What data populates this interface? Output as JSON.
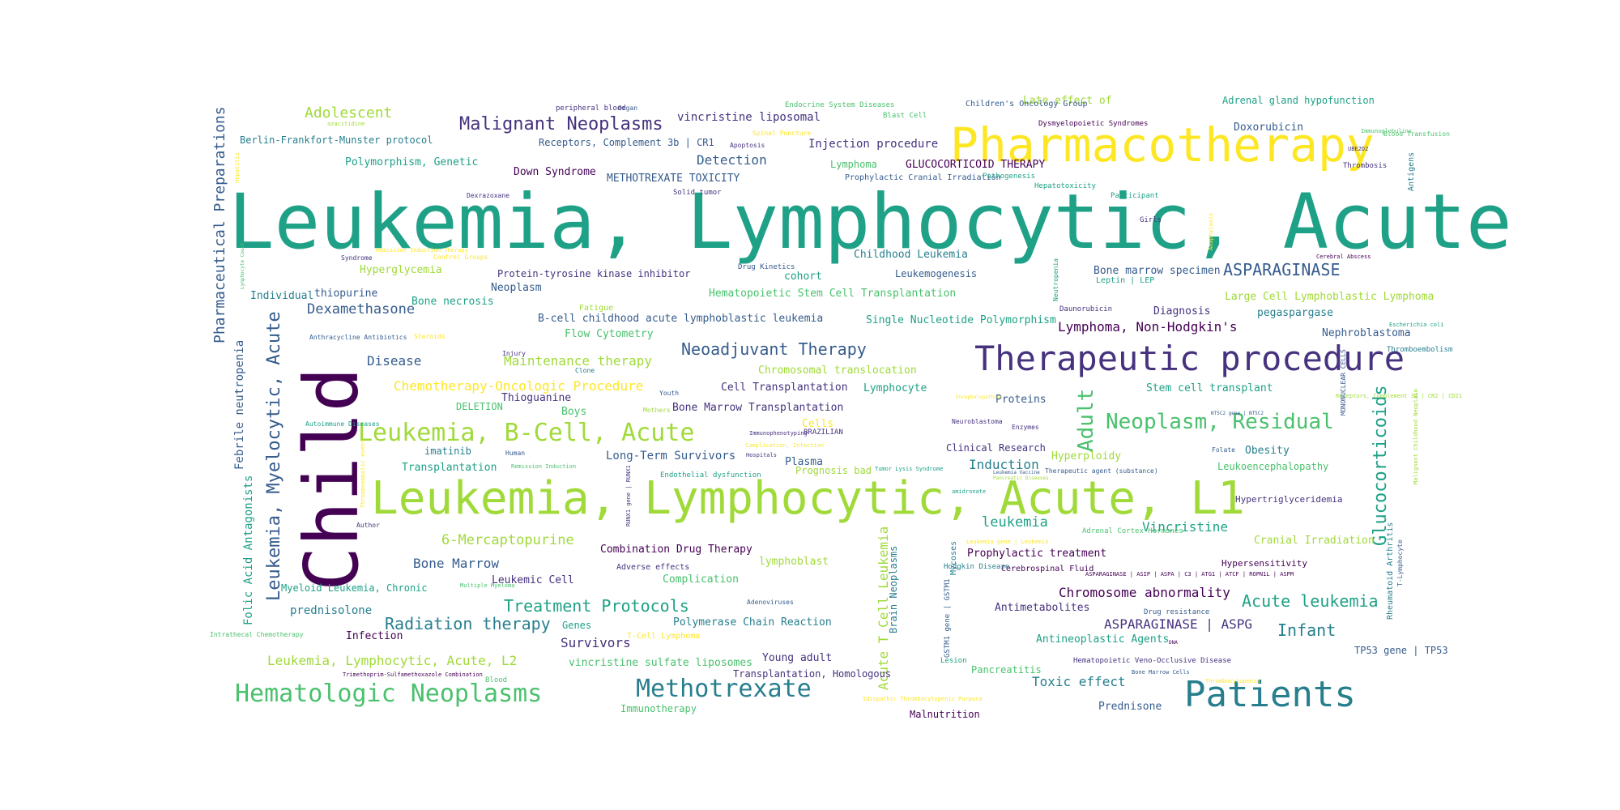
{
  "palette": {
    "c1": "#440154",
    "c2": "#46327e",
    "c3": "#365c8d",
    "c4": "#277f8e",
    "c5": "#1fa187",
    "c6": "#4ac16d",
    "c7": "#a0da39",
    "c8": "#fde725"
  },
  "words": [
    {
      "text": "Leukemia, Lymphocytic, Acute",
      "color": "c5"
    },
    {
      "text": "Child",
      "color": "c1"
    },
    {
      "text": "Leukemia, Lymphocytic, Acute, L1",
      "color": "c7"
    },
    {
      "text": "Pharmacotherapy",
      "color": "c8"
    },
    {
      "text": "Therapeutic procedure",
      "color": "c2"
    },
    {
      "text": "Patients",
      "color": "c4"
    },
    {
      "text": "Hematologic Neoplasms",
      "color": "c6"
    },
    {
      "text": "Methotrexate",
      "color": "c4"
    },
    {
      "text": "Leukemia, B-Cell, Acute",
      "color": "c7"
    },
    {
      "text": "Neoplasm, Residual",
      "color": "c6"
    },
    {
      "text": "Leukemia, Myelocytic, Acute",
      "color": "c3"
    },
    {
      "text": "Glucocorticoids",
      "color": "c5"
    },
    {
      "text": "Pharmaceutical Preparations",
      "color": "c3"
    },
    {
      "text": "Adult",
      "color": "c6"
    },
    {
      "text": "Malignant Neoplasms",
      "color": "c2"
    },
    {
      "text": "Neoadjuvant Therapy",
      "color": "c3"
    },
    {
      "text": "Treatment Protocols",
      "color": "c5"
    },
    {
      "text": "Radiation therapy",
      "color": "c4"
    },
    {
      "text": "Infant",
      "color": "c4"
    },
    {
      "text": "Acute leukemia",
      "color": "c5"
    },
    {
      "text": "Adolescent",
      "color": "c7"
    },
    {
      "text": "ASPARAGINASE",
      "color": "c3"
    },
    {
      "text": "Dexamethasone",
      "color": "c3"
    },
    {
      "text": "Chemotherapy-Oncologic Procedure",
      "color": "c8"
    },
    {
      "text": "Maintenance therapy",
      "color": "c7"
    },
    {
      "text": "6-Mercaptopurine",
      "color": "c7"
    },
    {
      "text": "Chromosome abnormality",
      "color": "c1"
    },
    {
      "text": "Survivors",
      "color": "c2"
    },
    {
      "text": "Leukemia, Lymphocytic, Acute, L2",
      "color": "c7"
    },
    {
      "text": "Acute T Cell Leukemia",
      "color": "c7"
    },
    {
      "text": "Detection",
      "color": "c3"
    },
    {
      "text": "Disease",
      "color": "c3"
    },
    {
      "text": "leukemia",
      "color": "c5"
    },
    {
      "text": "Induction",
      "color": "c4"
    },
    {
      "text": "Bone Marrow",
      "color": "c3"
    },
    {
      "text": "Vincristine",
      "color": "c5"
    },
    {
      "text": "Lymphoma, Non-Hodgkin's",
      "color": "c1"
    },
    {
      "text": "Toxic effect",
      "color": "c4"
    },
    {
      "text": "Long-Term Survivors",
      "color": "c3"
    },
    {
      "text": "ASPARAGINASE | ASPG",
      "color": "c2"
    },
    {
      "text": "Febrile neutropenia",
      "color": "c3"
    },
    {
      "text": "Folic Acid Antagonists",
      "color": "c5"
    },
    {
      "text": "vincristine liposomal",
      "color": "c2"
    },
    {
      "text": "Injection procedure",
      "color": "c2"
    },
    {
      "text": "GLUCOCORTICOID THERAPY",
      "color": "c1"
    },
    {
      "text": "Down Syndrome",
      "color": "c1"
    },
    {
      "text": "METHOTREXATE TOXICITY",
      "color": "c3"
    },
    {
      "text": "Polymorphism, Genetic",
      "color": "c5"
    },
    {
      "text": "Doxorubicin",
      "color": "c3"
    },
    {
      "text": "Late effect of",
      "color": "c7"
    },
    {
      "text": "Adrenal gland hypofunction",
      "color": "c5"
    },
    {
      "text": "Berlin-Frankfort-Munster protocol",
      "color": "c4"
    },
    {
      "text": "Receptors, Complement 3b | CR1",
      "color": "c3"
    },
    {
      "text": "Lymphoma",
      "color": "c6"
    },
    {
      "text": "Childhood Leukemia",
      "color": "c4"
    },
    {
      "text": "Hyperglycemia",
      "color": "c7"
    },
    {
      "text": "thiopurine",
      "color": "c3"
    },
    {
      "text": "Individual",
      "color": "c4"
    },
    {
      "text": "Protein-tyrosine kinase inhibitor",
      "color": "c2"
    },
    {
      "text": "cohort",
      "color": "c5"
    },
    {
      "text": "Leukemogenesis",
      "color": "c3"
    },
    {
      "text": "Bone marrow specimen",
      "color": "c3"
    },
    {
      "text": "Neoplasm",
      "color": "c3"
    },
    {
      "text": "Hematopoietic Stem Cell Transplantation",
      "color": "c6"
    },
    {
      "text": "Bone necrosis",
      "color": "c5"
    },
    {
      "text": "Large Cell Lymphoblastic Lymphoma",
      "color": "c7"
    },
    {
      "text": "B-cell childhood acute lymphoblastic leukemia",
      "color": "c3"
    },
    {
      "text": "Single Nucleotide Polymorphism",
      "color": "c5"
    },
    {
      "text": "Diagnosis",
      "color": "c2"
    },
    {
      "text": "pegaspargase",
      "color": "c4"
    },
    {
      "text": "Flow Cytometry",
      "color": "c6"
    },
    {
      "text": "Nephroblastoma",
      "color": "c3"
    },
    {
      "text": "Chromosomal translocation",
      "color": "c7"
    },
    {
      "text": "Cell Transplantation",
      "color": "c2"
    },
    {
      "text": "Lymphocyte",
      "color": "c5"
    },
    {
      "text": "Stem cell transplant",
      "color": "c5"
    },
    {
      "text": "Thioguanine",
      "color": "c2"
    },
    {
      "text": "Proteins",
      "color": "c3"
    },
    {
      "text": "Bone Marrow Transplantation",
      "color": "c2"
    },
    {
      "text": "DELETION",
      "color": "c6"
    },
    {
      "text": "Boys",
      "color": "c6"
    },
    {
      "text": "Cells",
      "color": "c8"
    },
    {
      "text": "Clinical Research",
      "color": "c2"
    },
    {
      "text": "Obesity",
      "color": "c4"
    },
    {
      "text": "imatinib",
      "color": "c4"
    },
    {
      "text": "Transplantation",
      "color": "c5"
    },
    {
      "text": "Plasma",
      "color": "c3"
    },
    {
      "text": "Hyperploidy",
      "color": "c7"
    },
    {
      "text": "Prognosis bad",
      "color": "c7"
    },
    {
      "text": "Leukoencephalopathy",
      "color": "c6"
    },
    {
      "text": "Hypertriglyceridemia",
      "color": "c2"
    },
    {
      "text": "Combination Drug Therapy",
      "color": "c1"
    },
    {
      "text": "Prophylactic treatment",
      "color": "c1"
    },
    {
      "text": "Cranial Irradiation",
      "color": "c7"
    },
    {
      "text": "lymphoblast",
      "color": "c7"
    },
    {
      "text": "Leukemic Cell",
      "color": "c2"
    },
    {
      "text": "Complication",
      "color": "c6"
    },
    {
      "text": "Myeloid Leukemia, Chronic",
      "color": "c5"
    },
    {
      "text": "Hypersensitivity",
      "color": "c1"
    },
    {
      "text": "prednisolone",
      "color": "c4"
    },
    {
      "text": "Antimetabolites",
      "color": "c2"
    },
    {
      "text": "Polymerase Chain Reaction",
      "color": "c4"
    },
    {
      "text": "Genes",
      "color": "c5"
    },
    {
      "text": "Infection",
      "color": "c1"
    },
    {
      "text": "Antineoplastic Agents",
      "color": "c5"
    },
    {
      "text": "vincristine sulfate liposomes",
      "color": "c6"
    },
    {
      "text": "Young adult",
      "color": "c2"
    },
    {
      "text": "Pancreatitis",
      "color": "c6"
    },
    {
      "text": "TP53 gene | TP53",
      "color": "c3"
    },
    {
      "text": "Transplantation, Homologous",
      "color": "c2"
    },
    {
      "text": "Immunotherapy",
      "color": "c6"
    },
    {
      "text": "Malnutrition",
      "color": "c1"
    },
    {
      "text": "Prednisone",
      "color": "c3"
    },
    {
      "text": "Brain Neoplasms",
      "color": "c4"
    },
    {
      "text": "Rheumatoid Arthritis",
      "color": "c4"
    },
    {
      "text": "Prophylactic Cranial Irradiation",
      "color": "c3"
    },
    {
      "text": "Thrombosis",
      "color": "c2"
    },
    {
      "text": "Antigens",
      "color": "c4"
    },
    {
      "text": "Thromboembolism",
      "color": "c4"
    },
    {
      "text": "Girls",
      "color": "c2"
    },
    {
      "text": "Leptin | LEP",
      "color": "c5"
    },
    {
      "text": "Daunorubicin",
      "color": "c2"
    },
    {
      "text": "Adverse effects",
      "color": "c2"
    },
    {
      "text": "Mycoses",
      "color": "c4"
    },
    {
      "text": "Cerebrospinal Fluid",
      "color": "c1"
    },
    {
      "text": "Drug resistance",
      "color": "c3"
    },
    {
      "text": "Lesion",
      "color": "c5"
    },
    {
      "text": "Hodgkin Disease",
      "color": "c4"
    },
    {
      "text": "Adrenal Cortex Hormones",
      "color": "c6"
    },
    {
      "text": "T-Cell Lymphoma",
      "color": "c8"
    },
    {
      "text": "Blood",
      "color": "c6"
    },
    {
      "text": "GSTM1 gene | GSTM1",
      "color": "c3"
    },
    {
      "text": "Hematopoietic Veno-Occlusive Disease",
      "color": "c2"
    },
    {
      "text": "Endothelial dysfunction",
      "color": "c5"
    },
    {
      "text": "Blast Cell",
      "color": "c6"
    },
    {
      "text": "Endocrine System Diseases",
      "color": "c6"
    },
    {
      "text": "Children's Oncology Group",
      "color": "c3"
    },
    {
      "text": "Dysmyelopoietic Syndromes",
      "color": "c1"
    },
    {
      "text": "Pathogenesis",
      "color": "c5"
    },
    {
      "text": "Hepatotoxicity",
      "color": "c5"
    },
    {
      "text": "Participant",
      "color": "c5"
    },
    {
      "text": "peripheral blood",
      "color": "c2"
    },
    {
      "text": "Organ",
      "color": "c3"
    },
    {
      "text": "Spinal Puncture",
      "color": "c8"
    },
    {
      "text": "Apoptosis",
      "color": "c2"
    },
    {
      "text": "Solid tumor",
      "color": "c2"
    },
    {
      "text": "Dexrazoxane",
      "color": "c2"
    },
    {
      "text": "Remission Induction Therapy",
      "color": "c8"
    },
    {
      "text": "Syndrome",
      "color": "c2"
    },
    {
      "text": "Control Groups",
      "color": "c8"
    },
    {
      "text": "Drug Kinetics",
      "color": "c3"
    },
    {
      "text": "Fatigue",
      "color": "c7"
    },
    {
      "text": "Anthracycline Antibiotics",
      "color": "c3"
    },
    {
      "text": "Steroids",
      "color": "c8"
    },
    {
      "text": "Injury",
      "color": "c2"
    },
    {
      "text": "Clone",
      "color": "c4"
    },
    {
      "text": "Mothers",
      "color": "c7"
    },
    {
      "text": "Youth",
      "color": "c3"
    },
    {
      "text": "Autoimmune Diseases",
      "color": "c5"
    },
    {
      "text": "Immunophenotyping",
      "color": "c2"
    },
    {
      "text": "BRAZILIAN",
      "color": "c2"
    },
    {
      "text": "Neuroblastoma",
      "color": "c2"
    },
    {
      "text": "Enzymes",
      "color": "c2"
    },
    {
      "text": "Complication, Infection",
      "color": "c8"
    },
    {
      "text": "Hospitals",
      "color": "c2"
    },
    {
      "text": "Human",
      "color": "c3"
    },
    {
      "text": "Remission Induction",
      "color": "c6"
    },
    {
      "text": "Tumor Lysis Syndrome",
      "color": "c5"
    },
    {
      "text": "Folate",
      "color": "c3"
    },
    {
      "text": "Therapeutic agent (substance)",
      "color": "c3"
    },
    {
      "text": "amidronate",
      "color": "c5"
    },
    {
      "text": "Author",
      "color": "c2"
    },
    {
      "text": "Adenoviruses",
      "color": "c3"
    },
    {
      "text": "Multiple Myeloma",
      "color": "c6"
    },
    {
      "text": "Intrathecal Chemotherapy",
      "color": "c6"
    },
    {
      "text": "Trimethoprim-Sulfamethoxazole Combination",
      "color": "c1"
    },
    {
      "text": "ASPARAGINASE | ASIP | ASPA | C3 | ATG1 | ATCF | ROPN1L | ASPM",
      "color": "c1"
    },
    {
      "text": "Bone Marrow Cells",
      "color": "c3"
    },
    {
      "text": "DNA",
      "color": "c1"
    },
    {
      "text": "Cerebral Abscess",
      "color": "c1"
    },
    {
      "text": "Blood Transfusion",
      "color": "c6"
    },
    {
      "text": "Immunoglobulins",
      "color": "c6"
    },
    {
      "text": "Escherichia coli",
      "color": "c5"
    },
    {
      "text": "Receptors, Complement 3d | CR2 | CD21",
      "color": "c7"
    },
    {
      "text": "T-Lymphocyte",
      "color": "c3"
    },
    {
      "text": "Malignant Childhood Neoplasm",
      "color": "c7"
    },
    {
      "text": "MONONUCLEAR CELLS",
      "color": "c3"
    },
    {
      "text": "Neutropenia",
      "color": "c5"
    },
    {
      "text": "RUNX1 gene | RUNX1",
      "color": "c2"
    },
    {
      "text": "Thromboembolic event",
      "color": "c8"
    },
    {
      "text": "Leukemia gene | Leukemia",
      "color": "c8"
    },
    {
      "text": "UBE2D2",
      "color": "c2"
    },
    {
      "text": "azacitidine",
      "color": "c7"
    },
    {
      "text": "Anaphylaxis",
      "color": "c8"
    },
    {
      "text": "Hepatitis",
      "color": "c8"
    },
    {
      "text": "Idiopathic Thrombocytopenic Purpura",
      "color": "c8"
    },
    {
      "text": "Thrombocytopenia",
      "color": "c8"
    },
    {
      "text": "Lymphocyte Count",
      "color": "c6"
    },
    {
      "text": "Encephalopathies",
      "color": "c8"
    },
    {
      "text": "NT5C2 gene | NT5C2",
      "color": "c3"
    },
    {
      "text": "Leukemia Vaccine",
      "color": "c3"
    },
    {
      "text": "Pancreatic Diseases",
      "color": "c7"
    },
    {
      "text": "Ethnicity",
      "color": "c6"
    }
  ]
}
